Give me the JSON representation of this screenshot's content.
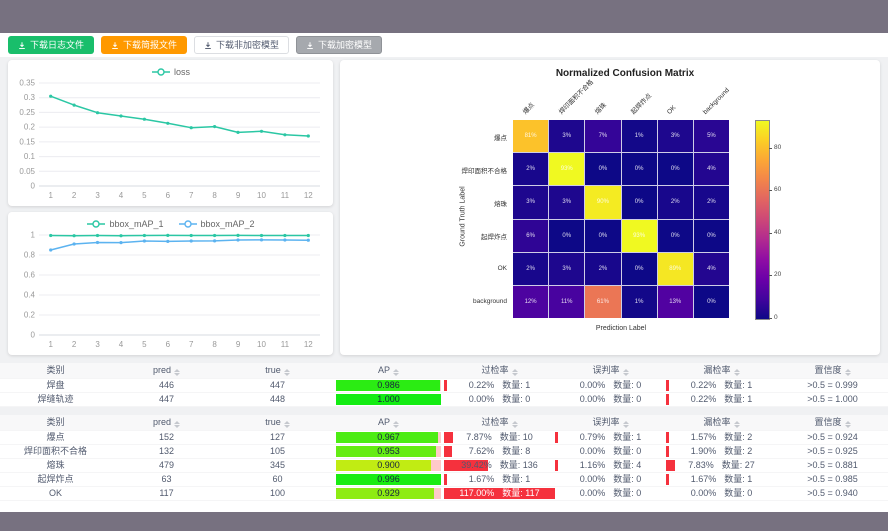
{
  "toolbar": {
    "buttons": [
      {
        "label": "下载日志文件",
        "style": "success"
      },
      {
        "label": "下载简报文件",
        "style": "warning"
      },
      {
        "label": "下载非加密模型",
        "style": "plain"
      },
      {
        "label": "下载加密模型",
        "style": "gray"
      }
    ]
  },
  "chart_data": [
    {
      "id": "loss",
      "type": "line",
      "x": [
        1,
        2,
        3,
        4,
        5,
        6,
        7,
        8,
        9,
        10,
        11,
        12
      ],
      "series": [
        {
          "name": "loss",
          "color": "#2bc7a4",
          "values": [
            0.305,
            0.275,
            0.249,
            0.238,
            0.227,
            0.213,
            0.198,
            0.202,
            0.182,
            0.186,
            0.174,
            0.17
          ]
        }
      ],
      "ylim": [
        0,
        0.35
      ],
      "yticks": [
        0,
        0.05,
        0.1,
        0.15,
        0.2,
        0.25,
        0.3,
        0.35
      ],
      "grid": true,
      "legend_position": "top"
    },
    {
      "id": "bbox_map",
      "type": "line",
      "x": [
        1,
        2,
        3,
        4,
        5,
        6,
        7,
        8,
        9,
        10,
        11,
        12
      ],
      "series": [
        {
          "name": "bbox_mAP_1",
          "color": "#2bc7a4",
          "values": [
            0.995,
            0.993,
            0.995,
            0.993,
            0.995,
            0.996,
            0.995,
            0.995,
            0.996,
            0.995,
            0.995,
            0.995
          ]
        },
        {
          "name": "bbox_mAP_2",
          "color": "#5cb3f0",
          "values": [
            0.85,
            0.91,
            0.925,
            0.924,
            0.94,
            0.936,
            0.94,
            0.941,
            0.95,
            0.951,
            0.95,
            0.948
          ]
        }
      ],
      "ylim": [
        0,
        1
      ],
      "yticks": [
        0,
        0.2,
        0.4,
        0.6,
        0.8,
        1
      ],
      "grid": true,
      "legend_position": "top"
    },
    {
      "id": "confusion_matrix",
      "type": "heatmap",
      "title": "Normalized Confusion Matrix",
      "xlabel": "Prediction Label",
      "ylabel": "Ground Truth Label",
      "labels": [
        "爆点",
        "焊印面积不合格",
        "熔珠",
        "起焊炸点",
        "OK",
        "background"
      ],
      "matrix": [
        [
          81,
          3,
          7,
          1,
          3,
          5
        ],
        [
          2,
          93,
          0,
          0,
          0,
          4
        ],
        [
          3,
          3,
          90,
          0,
          2,
          2
        ],
        [
          6,
          0,
          0,
          93,
          0,
          0
        ],
        [
          2,
          3,
          2,
          0,
          89,
          4
        ],
        [
          12,
          11,
          61,
          1,
          13,
          0
        ]
      ],
      "vmax": 93,
      "colorbar_ticks": [
        0,
        20,
        40,
        60,
        80
      ],
      "colormap": "plasma"
    }
  ],
  "tables": [
    {
      "headers": [
        "类别",
        "pred",
        "true",
        "AP",
        "过检率",
        "误判率",
        "漏检率",
        "置信度"
      ],
      "sortable": [
        false,
        true,
        true,
        true,
        true,
        true,
        true,
        true
      ],
      "rows": [
        {
          "label": "焊盘",
          "pred": "446",
          "true": "447",
          "ap": "0.986",
          "ap_val": 0.986,
          "overkill_pct": "0.22%",
          "overkill_count": "数量: 1",
          "overkill_val": 0.22,
          "misjudge_pct": "0.00%",
          "misjudge_count": "数量: 0",
          "misjudge_val": 0,
          "miss_pct": "0.22%",
          "miss_count": "数量: 1",
          "miss_val": 0.22,
          "confidence": ">0.5 = 0.999"
        },
        {
          "label": "焊缝轨迹",
          "pred": "447",
          "true": "448",
          "ap": "1.000",
          "ap_val": 1.0,
          "overkill_pct": "0.00%",
          "overkill_count": "数量: 0",
          "overkill_val": 0,
          "misjudge_pct": "0.00%",
          "misjudge_count": "数量: 0",
          "misjudge_val": 0,
          "miss_pct": "0.22%",
          "miss_count": "数量: 1",
          "miss_val": 0.22,
          "confidence": ">0.5 = 1.000"
        }
      ]
    },
    {
      "headers": [
        "类别",
        "pred",
        "true",
        "AP",
        "过检率",
        "误判率",
        "漏检率",
        "置信度"
      ],
      "sortable": [
        false,
        true,
        true,
        true,
        true,
        true,
        true,
        true
      ],
      "rows": [
        {
          "label": "爆点",
          "pred": "152",
          "true": "127",
          "ap": "0.967",
          "ap_val": 0.967,
          "overkill_pct": "7.87%",
          "overkill_count": "数量: 10",
          "overkill_val": 7.87,
          "misjudge_pct": "0.79%",
          "misjudge_count": "数量: 1",
          "misjudge_val": 0.79,
          "miss_pct": "1.57%",
          "miss_count": "数量: 2",
          "miss_val": 1.57,
          "confidence": ">0.5 = 0.924"
        },
        {
          "label": "焊印面积不合格",
          "pred": "132",
          "true": "105",
          "ap": "0.953",
          "ap_val": 0.953,
          "overkill_pct": "7.62%",
          "overkill_count": "数量: 8",
          "overkill_val": 7.62,
          "misjudge_pct": "0.00%",
          "misjudge_count": "数量: 0",
          "misjudge_val": 0,
          "miss_pct": "1.90%",
          "miss_count": "数量: 2",
          "miss_val": 1.9,
          "confidence": ">0.5 = 0.925"
        },
        {
          "label": "熔珠",
          "pred": "479",
          "true": "345",
          "ap": "0.900",
          "ap_val": 0.9,
          "overkill_pct": "39.42%",
          "overkill_count": "数量: 136",
          "overkill_val": 39.42,
          "misjudge_pct": "1.16%",
          "misjudge_count": "数量: 4",
          "misjudge_val": 1.16,
          "miss_pct": "7.83%",
          "miss_count": "数量: 27",
          "miss_val": 7.83,
          "confidence": ">0.5 = 0.881"
        },
        {
          "label": "起焊炸点",
          "pred": "63",
          "true": "60",
          "ap": "0.996",
          "ap_val": 0.996,
          "overkill_pct": "1.67%",
          "overkill_count": "数量: 1",
          "overkill_val": 1.67,
          "misjudge_pct": "0.00%",
          "misjudge_count": "数量: 0",
          "misjudge_val": 0,
          "miss_pct": "1.67%",
          "miss_count": "数量: 1",
          "miss_val": 1.67,
          "confidence": ">0.5 = 0.985"
        },
        {
          "label": "OK",
          "pred": "117",
          "true": "100",
          "ap": "0.929",
          "ap_val": 0.929,
          "overkill_pct": "117.00%",
          "overkill_count": "数量: 117",
          "overkill_val": 117.0,
          "misjudge_pct": "0.00%",
          "misjudge_count": "数量: 0",
          "misjudge_val": 0,
          "miss_pct": "0.00%",
          "miss_count": "数量: 0",
          "miss_val": 0,
          "confidence": ">0.5 = 0.940"
        }
      ]
    }
  ],
  "colors": {
    "accent_teal": "#2bc7a4",
    "accent_blue": "#5cb3f0",
    "success_green": "#19be6b",
    "warning_orange": "#ff9900",
    "bar_red": "#f5313d",
    "frame_gray": "#777180"
  }
}
